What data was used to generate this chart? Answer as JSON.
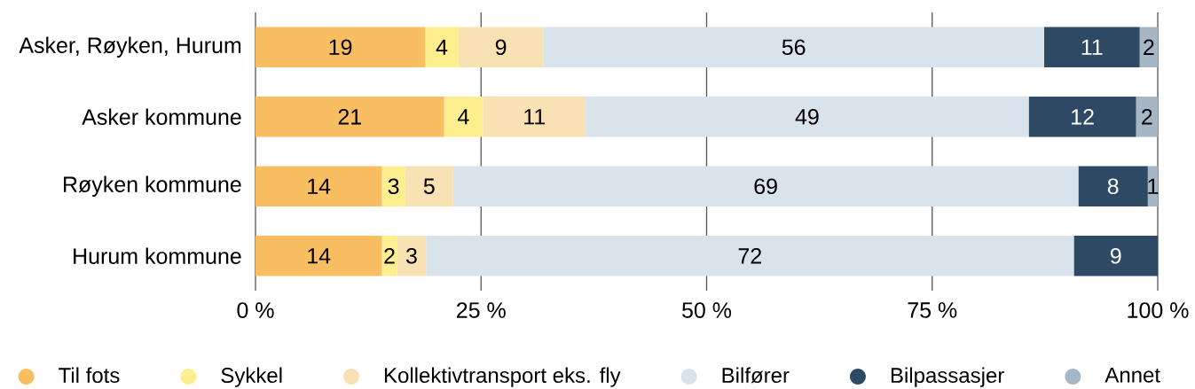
{
  "chart_data": {
    "type": "bar",
    "orientation": "horizontal",
    "stacked": true,
    "categories": [
      "Asker, Røyken, Hurum",
      "Asker kommune",
      "Røyken kommune",
      "Hurum kommune"
    ],
    "series": [
      {
        "name": "Til fots",
        "color": "#f9bd62",
        "values": [
          18.8,
          20.9,
          14.0,
          14.0
        ],
        "value_labels": [
          "19",
          "21",
          "14",
          "14"
        ]
      },
      {
        "name": "Sykkel",
        "color": "#fdee8e",
        "values": [
          3.7,
          4.3,
          2.6,
          1.7
        ],
        "value_labels": [
          "4",
          "4",
          "3",
          "2"
        ]
      },
      {
        "name": "Kollektivtransport eks. fly",
        "color": "#f8e1b2",
        "values": [
          9.4,
          11.4,
          5.3,
          3.2
        ],
        "value_labels": [
          "9",
          "11",
          "5",
          "3"
        ]
      },
      {
        "name": "Bilfører",
        "color": "#d9e3ec",
        "values": [
          55.5,
          49.1,
          69.3,
          71.8
        ],
        "value_labels": [
          "56",
          "49",
          "69",
          "72"
        ]
      },
      {
        "name": "Bilpassasjer",
        "color": "#2d4964",
        "values": [
          10.6,
          11.9,
          7.7,
          9.3
        ],
        "value_labels": [
          "11",
          "12",
          "8",
          "9"
        ]
      },
      {
        "name": "Annet",
        "color": "#a5b7c4",
        "values": [
          2.0,
          2.4,
          1.1,
          null
        ],
        "value_labels": [
          "2",
          "2",
          "1",
          null
        ]
      }
    ],
    "xlim": [
      0,
      100
    ],
    "xticks": [
      {
        "value": 0,
        "label": "0 %"
      },
      {
        "value": 25,
        "label": "25 %"
      },
      {
        "value": 50,
        "label": "50 %"
      },
      {
        "value": 75,
        "label": "75 %"
      },
      {
        "value": 100,
        "label": "100 %"
      }
    ],
    "grid": "x",
    "legend": "bottom"
  }
}
